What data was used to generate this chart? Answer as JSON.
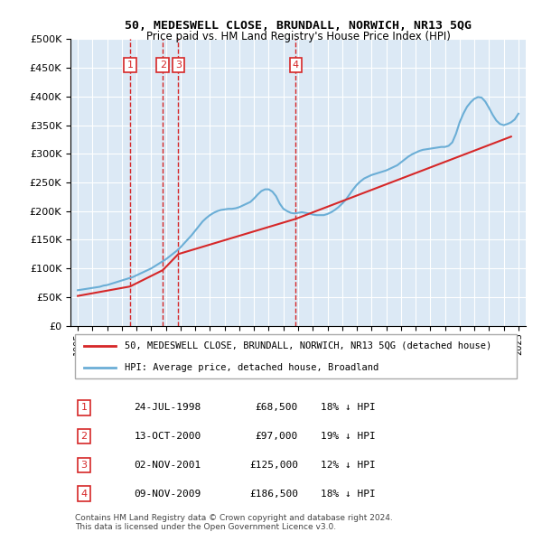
{
  "title": "50, MEDESWELL CLOSE, BRUNDALL, NORWICH, NR13 5QG",
  "subtitle": "Price paid vs. HM Land Registry's House Price Index (HPI)",
  "footer": "Contains HM Land Registry data © Crown copyright and database right 2024.\nThis data is licensed under the Open Government Licence v3.0.",
  "legend_line1": "50, MEDESWELL CLOSE, BRUNDALL, NORWICH, NR13 5QG (detached house)",
  "legend_line2": "HPI: Average price, detached house, Broadland",
  "transactions": [
    {
      "num": 1,
      "date": "24-JUL-1998",
      "price": 68500,
      "year": 1998.56,
      "hpi_pct": "18% ↓ HPI"
    },
    {
      "num": 2,
      "date": "13-OCT-2000",
      "price": 97000,
      "year": 2000.79,
      "hpi_pct": "19% ↓ HPI"
    },
    {
      "num": 3,
      "date": "02-NOV-2001",
      "price": 125000,
      "year": 2001.84,
      "hpi_pct": "12% ↓ HPI"
    },
    {
      "num": 4,
      "date": "09-NOV-2009",
      "price": 186500,
      "year": 2009.84,
      "hpi_pct": "18% ↓ HPI"
    }
  ],
  "hpi_color": "#6baed6",
  "price_color": "#d62728",
  "vline_color": "#d62728",
  "bg_color": "#dce9f5",
  "grid_color": "#ffffff",
  "ylim": [
    0,
    500000
  ],
  "yticks": [
    0,
    50000,
    100000,
    150000,
    200000,
    250000,
    300000,
    350000,
    400000,
    450000,
    500000
  ],
  "xlim_start": 1994.5,
  "xlim_end": 2025.5,
  "hpi_data_years": [
    1995,
    1995.25,
    1995.5,
    1995.75,
    1996,
    1996.25,
    1996.5,
    1996.75,
    1997,
    1997.25,
    1997.5,
    1997.75,
    1998,
    1998.25,
    1998.5,
    1998.75,
    1999,
    1999.25,
    1999.5,
    1999.75,
    2000,
    2000.25,
    2000.5,
    2000.75,
    2001,
    2001.25,
    2001.5,
    2001.75,
    2002,
    2002.25,
    2002.5,
    2002.75,
    2003,
    2003.25,
    2003.5,
    2003.75,
    2004,
    2004.25,
    2004.5,
    2004.75,
    2005,
    2005.25,
    2005.5,
    2005.75,
    2006,
    2006.25,
    2006.5,
    2006.75,
    2007,
    2007.25,
    2007.5,
    2007.75,
    2008,
    2008.25,
    2008.5,
    2008.75,
    2009,
    2009.25,
    2009.5,
    2009.75,
    2010,
    2010.25,
    2010.5,
    2010.75,
    2011,
    2011.25,
    2011.5,
    2011.75,
    2012,
    2012.25,
    2012.5,
    2012.75,
    2013,
    2013.25,
    2013.5,
    2013.75,
    2014,
    2014.25,
    2014.5,
    2014.75,
    2015,
    2015.25,
    2015.5,
    2015.75,
    2016,
    2016.25,
    2016.5,
    2016.75,
    2017,
    2017.25,
    2017.5,
    2017.75,
    2018,
    2018.25,
    2018.5,
    2018.75,
    2019,
    2019.25,
    2019.5,
    2019.75,
    2020,
    2020.25,
    2020.5,
    2020.75,
    2021,
    2021.25,
    2021.5,
    2021.75,
    2022,
    2022.25,
    2022.5,
    2022.75,
    2023,
    2023.25,
    2023.5,
    2023.75,
    2024,
    2024.25,
    2024.5,
    2024.75,
    2025
  ],
  "hpi_data_values": [
    62000,
    63000,
    64000,
    65000,
    66000,
    67000,
    68000,
    70000,
    71000,
    73000,
    75000,
    77000,
    79000,
    81000,
    83000,
    85000,
    88000,
    91000,
    94000,
    97000,
    100000,
    104000,
    108000,
    112000,
    116000,
    121000,
    126000,
    131000,
    137000,
    144000,
    151000,
    158000,
    166000,
    174000,
    182000,
    188000,
    193000,
    197000,
    200000,
    202000,
    203000,
    204000,
    204000,
    205000,
    207000,
    210000,
    213000,
    216000,
    222000,
    229000,
    235000,
    238000,
    238000,
    234000,
    226000,
    213000,
    204000,
    200000,
    197000,
    196000,
    197000,
    198000,
    197000,
    196000,
    194000,
    193000,
    193000,
    193000,
    195000,
    198000,
    202000,
    207000,
    213000,
    220000,
    229000,
    238000,
    246000,
    252000,
    257000,
    260000,
    263000,
    265000,
    267000,
    269000,
    271000,
    274000,
    277000,
    280000,
    285000,
    290000,
    295000,
    299000,
    302000,
    305000,
    307000,
    308000,
    309000,
    310000,
    311000,
    312000,
    312000,
    314000,
    320000,
    335000,
    355000,
    370000,
    382000,
    390000,
    396000,
    399000,
    398000,
    391000,
    380000,
    368000,
    358000,
    352000,
    350000,
    352000,
    355000,
    360000,
    370000
  ],
  "price_data_years": [
    1995,
    1998.56,
    2000.79,
    2001.84,
    2009.84,
    2024.5
  ],
  "price_data_values": [
    52000,
    68500,
    97000,
    125000,
    186500,
    330000
  ]
}
